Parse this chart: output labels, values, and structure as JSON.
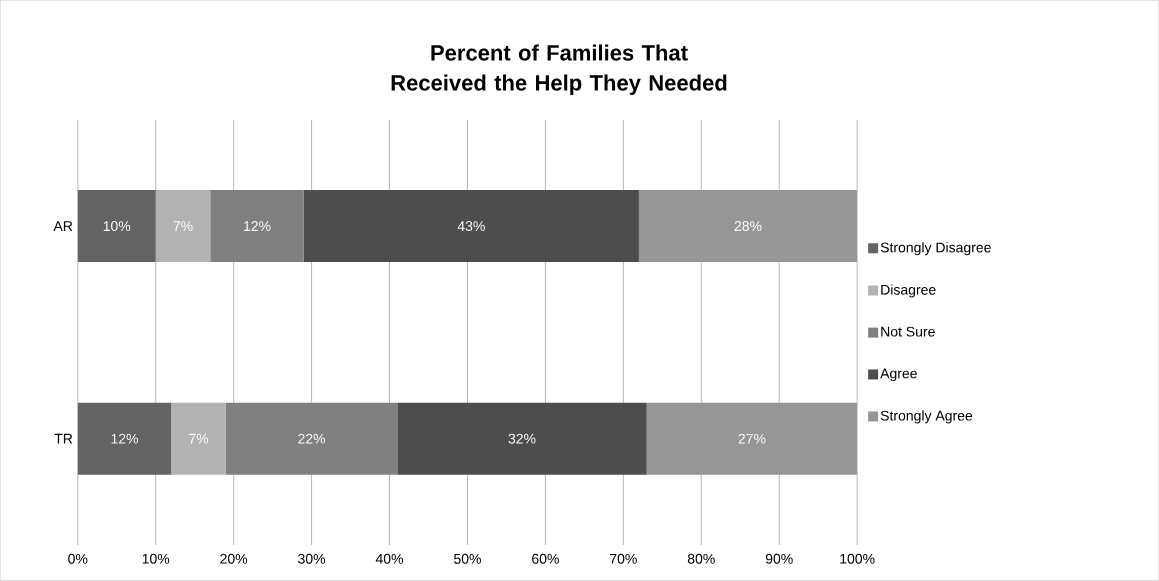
{
  "chart_data": {
    "type": "bar",
    "orientation": "horizontal",
    "stacked": true,
    "title": "Percent of Families That Received the Help They Needed",
    "categories": [
      "AR",
      "TR"
    ],
    "series": [
      {
        "name": "Strongly Disagree",
        "color": "#636363",
        "values": [
          10,
          12
        ],
        "value_labels": [
          "10%",
          "12%"
        ]
      },
      {
        "name": "Disagree",
        "color": "#b2b2b2",
        "values": [
          7,
          7
        ],
        "value_labels": [
          "7%",
          "7%"
        ]
      },
      {
        "name": "Not Sure",
        "color": "#808080",
        "values": [
          12,
          22
        ],
        "value_labels": [
          "12%",
          "22%"
        ]
      },
      {
        "name": "Agree",
        "color": "#4d4d4d",
        "values": [
          43,
          32
        ],
        "value_labels": [
          "43%",
          "32%"
        ]
      },
      {
        "name": "Strongly Agree",
        "color": "#969696",
        "values": [
          28,
          27
        ],
        "value_labels": [
          "28%",
          "27%"
        ]
      }
    ],
    "xlim": [
      0,
      100
    ],
    "xticks": [
      {
        "value": 0,
        "label": "0%"
      },
      {
        "value": 10,
        "label": "10%"
      },
      {
        "value": 20,
        "label": "20%"
      },
      {
        "value": 30,
        "label": "30%"
      },
      {
        "value": 40,
        "label": "40%"
      },
      {
        "value": 50,
        "label": "50%"
      },
      {
        "value": 60,
        "label": "60%"
      },
      {
        "value": 70,
        "label": "70%"
      },
      {
        "value": 80,
        "label": "80%"
      },
      {
        "value": 90,
        "label": "90%"
      },
      {
        "value": 100,
        "label": "100%"
      }
    ],
    "grid": "x",
    "legend": "right"
  }
}
